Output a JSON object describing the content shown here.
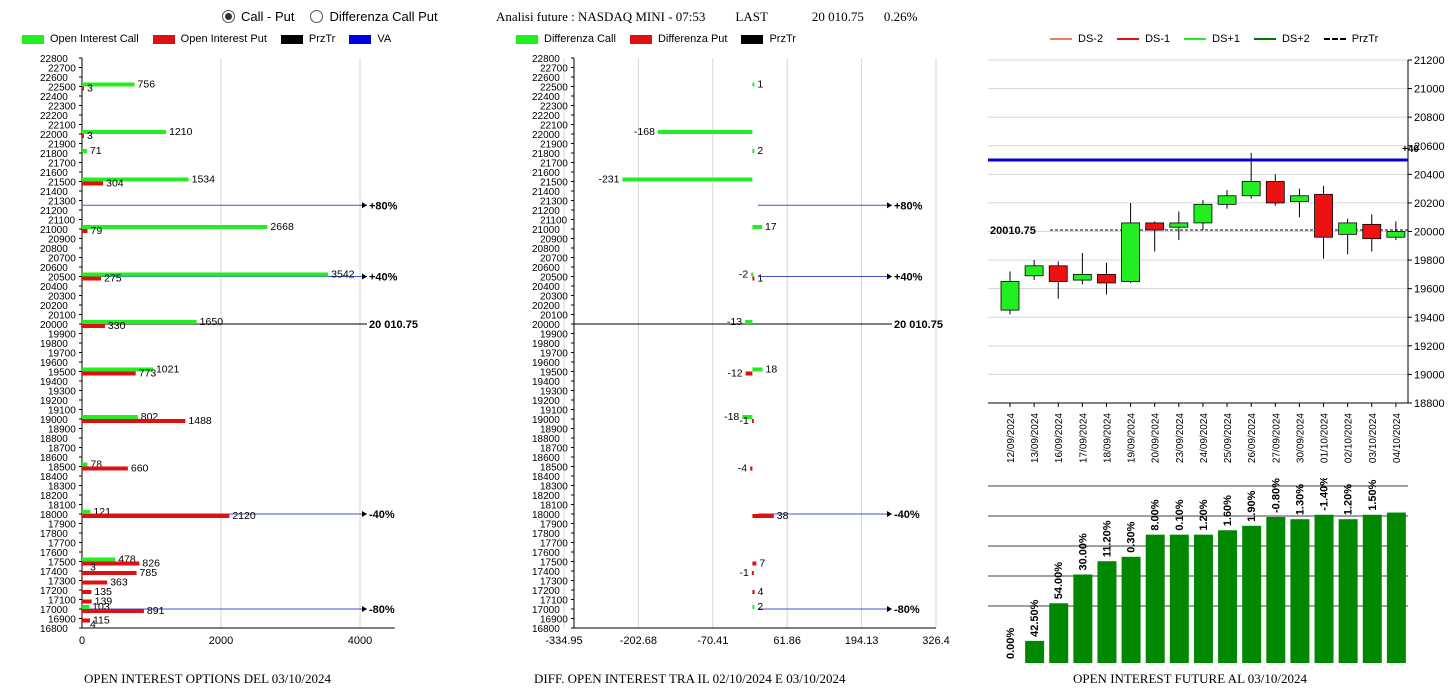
{
  "radio": {
    "options": [
      {
        "label": "Call - Put",
        "checked": true
      },
      {
        "label": "Differenza Call Put",
        "checked": false
      }
    ]
  },
  "header": {
    "title": "Analisi future : NASDAQ MINI - 07:53",
    "last_label": "LAST",
    "last_value": "20 010.75",
    "change": "0.26%"
  },
  "legends": {
    "left": [
      {
        "label": "Open Interest Call",
        "color": "#22ee22"
      },
      {
        "label": "Open Interest Put",
        "color": "#dd1111"
      },
      {
        "label": "PrzTr",
        "color": "#000000"
      },
      {
        "label": "VA",
        "color": "#0000dd"
      }
    ],
    "middle": [
      {
        "label": "Differenza Call",
        "color": "#22ee22"
      },
      {
        "label": "Differenza Put",
        "color": "#dd1111"
      },
      {
        "label": "PrzTr",
        "color": "#000000"
      }
    ],
    "right": [
      {
        "label": "DS-2",
        "color": "#f08060",
        "dash": false
      },
      {
        "label": "DS-1",
        "color": "#dd1111",
        "dash": false
      },
      {
        "label": "DS+1",
        "color": "#22ee22",
        "dash": false
      },
      {
        "label": "DS+2",
        "color": "#007700",
        "dash": false
      },
      {
        "label": "PrzTr",
        "color": "#000000",
        "dash": true
      }
    ]
  },
  "captions": {
    "left": "OPEN INTEREST OPTIONS DEL 03/10/2024",
    "middle": "DIFF. OPEN INTEREST TRA IL 02/10/2024 E 03/10/2024",
    "right": "OPEN INTEREST FUTURE AL 03/10/2024"
  },
  "chart_data": [
    {
      "type": "bar",
      "orientation": "horizontal",
      "ylim": [
        16800,
        22800
      ],
      "ytick_step": 100,
      "y_ticks": [
        "16800",
        "16900",
        "17000",
        "17100",
        "17200",
        "17300",
        "17400",
        "17500",
        "17600",
        "17700",
        "17800",
        "17900",
        "18000",
        "18100",
        "18200",
        "18300",
        "18400",
        "18500",
        "18600",
        "18700",
        "18800",
        "18900",
        "19000",
        "19100",
        "19200",
        "19300",
        "19400",
        "19500",
        "19600",
        "19700",
        "19800",
        "19900",
        "20000",
        "20100",
        "20200",
        "20300",
        "20400",
        "20500",
        "20600",
        "20700",
        "20800",
        "20900",
        "21000",
        "21100",
        "21200",
        "21300",
        "21400",
        "21500",
        "21600",
        "21700",
        "21800",
        "21900",
        "22000",
        "22100",
        "22200",
        "22300",
        "22400",
        "22500",
        "22600",
        "22700",
        "22800"
      ],
      "xlim": [
        0,
        4500
      ],
      "x_ticks": [
        "0",
        "2000",
        "4000"
      ],
      "x_tick_values": [
        0,
        2000,
        4000
      ],
      "series": [
        {
          "name": "Open Interest Call",
          "color": "#22ee22",
          "values": [
            {
              "strike": 22500,
              "value": 756
            },
            {
              "strike": 22000,
              "value": 1210
            },
            {
              "strike": 21800,
              "value": 71
            },
            {
              "strike": 21500,
              "value": 1534
            },
            {
              "strike": 21000,
              "value": 2668
            },
            {
              "strike": 20500,
              "value": 3542
            },
            {
              "strike": 20000,
              "value": 1650
            },
            {
              "strike": 19500,
              "value": 1021
            },
            {
              "strike": 19000,
              "value": 802
            },
            {
              "strike": 18500,
              "value": 78
            },
            {
              "strike": 18000,
              "value": 121
            },
            {
              "strike": 17500,
              "value": 478
            },
            {
              "strike": 17000,
              "value": 103
            }
          ]
        },
        {
          "name": "Open Interest Put",
          "color": "#dd1111",
          "values": [
            {
              "strike": 22500,
              "value": 3
            },
            {
              "strike": 22000,
              "value": 3
            },
            {
              "strike": 21500,
              "value": 304
            },
            {
              "strike": 21000,
              "value": 79
            },
            {
              "strike": 20500,
              "value": 275
            },
            {
              "strike": 20000,
              "value": 330
            },
            {
              "strike": 19500,
              "value": 773
            },
            {
              "strike": 19000,
              "value": 1488
            },
            {
              "strike": 18500,
              "value": 660
            },
            {
              "strike": 18000,
              "value": 2120
            },
            {
              "strike": 17500,
              "value": 826
            },
            {
              "strike": 17400,
              "value": 785
            },
            {
              "strike": 17300,
              "value": 363
            },
            {
              "strike": 17200,
              "value": 135
            },
            {
              "strike": 17100,
              "value": 139
            },
            {
              "strike": 17000,
              "value": 891
            },
            {
              "strike": 16900,
              "value": 115
            }
          ]
        }
      ],
      "extra_labels": [
        {
          "strike": 17450,
          "text": "3"
        },
        {
          "strike": 16850,
          "text": "4"
        }
      ],
      "levels": [
        {
          "strike": 21250,
          "label": "+80%",
          "color": "#4455cc"
        },
        {
          "strike": 20500,
          "label": "+40%",
          "color": "#4455cc"
        },
        {
          "strike": 20000,
          "label": "20 010.75",
          "color": "#000000"
        },
        {
          "strike": 18000,
          "label": "-40%",
          "color": "#4455cc"
        },
        {
          "strike": 17000,
          "label": "-80%",
          "color": "#4455cc"
        }
      ]
    },
    {
      "type": "bar",
      "orientation": "horizontal",
      "ylim": [
        16800,
        22800
      ],
      "ytick_step": 100,
      "y_ticks": [
        "16800",
        "16900",
        "17000",
        "17100",
        "17200",
        "17300",
        "17400",
        "17500",
        "17600",
        "17700",
        "17800",
        "17900",
        "18000",
        "18100",
        "18200",
        "18300",
        "18400",
        "18500",
        "18600",
        "18700",
        "18800",
        "18900",
        "19000",
        "19100",
        "19200",
        "19300",
        "19400",
        "19500",
        "19600",
        "19700",
        "19800",
        "19900",
        "20000",
        "20100",
        "20200",
        "20300",
        "20400",
        "20500",
        "20600",
        "20700",
        "20800",
        "20900",
        "21000",
        "21100",
        "21200",
        "21300",
        "21400",
        "21500",
        "21600",
        "21700",
        "21800",
        "21900",
        "22000",
        "22100",
        "22200",
        "22300",
        "22400",
        "22500",
        "22600",
        "22700",
        "22800"
      ],
      "xlim": [
        -334.95,
        326.4
      ],
      "x_ticks": [
        "-334.95",
        "-202.68",
        "-70.41",
        "61.86",
        "194.13",
        "326.4"
      ],
      "x_tick_values": [
        -334.95,
        -202.68,
        -70.41,
        61.86,
        194.13,
        326.4
      ],
      "series": [
        {
          "name": "Differenza Call",
          "color": "#22ee22",
          "values": [
            {
              "strike": 22500,
              "value": 1
            },
            {
              "strike": 22000,
              "value": -168
            },
            {
              "strike": 21800,
              "value": 2
            },
            {
              "strike": 21500,
              "value": -231
            },
            {
              "strike": 21000,
              "value": 17
            },
            {
              "strike": 20500,
              "value": -2
            },
            {
              "strike": 20000,
              "value": -13
            },
            {
              "strike": 19500,
              "value": 18
            },
            {
              "strike": 19000,
              "value": -18
            },
            {
              "strike": 17000,
              "value": 2
            }
          ]
        },
        {
          "name": "Differenza Put",
          "color": "#dd1111",
          "values": [
            {
              "strike": 20500,
              "value": 1
            },
            {
              "strike": 19500,
              "value": -12
            },
            {
              "strike": 19000,
              "value": -1
            },
            {
              "strike": 18500,
              "value": -4
            },
            {
              "strike": 18000,
              "value": 38
            },
            {
              "strike": 17500,
              "value": 7
            },
            {
              "strike": 17400,
              "value": -1
            },
            {
              "strike": 17200,
              "value": 4
            }
          ]
        }
      ],
      "levels": [
        {
          "strike": 21250,
          "label": "+80%",
          "color": "#4455cc"
        },
        {
          "strike": 20500,
          "label": "+40%",
          "color": "#4455cc"
        },
        {
          "strike": 20000,
          "label": "20 010.75",
          "color": "#000000"
        },
        {
          "strike": 18000,
          "label": "-40%",
          "color": "#4455cc"
        },
        {
          "strike": 17000,
          "label": "-80%",
          "color": "#4455cc"
        }
      ]
    },
    {
      "type": "candlestick",
      "ylim": [
        18800,
        21200
      ],
      "y_ticks": [
        "18800",
        "19000",
        "19200",
        "19400",
        "19600",
        "19800",
        "20000",
        "20200",
        "20400",
        "20600",
        "20800",
        "21000",
        "21200"
      ],
      "categories": [
        "12/09/2024",
        "13/09/2024",
        "16/09/2024",
        "17/09/2024",
        "18/09/2024",
        "19/09/2024",
        "20/09/2024",
        "23/09/2024",
        "24/09/2024",
        "25/09/2024",
        "26/09/2024",
        "27/09/2024",
        "30/09/2024",
        "01/10/2024",
        "02/10/2024",
        "03/10/2024",
        "04/10/2024"
      ],
      "candles": [
        {
          "open": 19450,
          "close": 19650,
          "high": 19720,
          "low": 19420
        },
        {
          "open": 19690,
          "close": 19760,
          "high": 19800,
          "low": 19660
        },
        {
          "open": 19760,
          "close": 19650,
          "high": 19790,
          "low": 19530
        },
        {
          "open": 19660,
          "close": 19700,
          "high": 19850,
          "low": 19630
        },
        {
          "open": 19700,
          "close": 19640,
          "high": 19780,
          "low": 19560
        },
        {
          "open": 19650,
          "close": 20060,
          "high": 20200,
          "low": 19640
        },
        {
          "open": 20060,
          "close": 20010,
          "high": 20070,
          "low": 19860
        },
        {
          "open": 20030,
          "close": 20060,
          "high": 20140,
          "low": 19940
        },
        {
          "open": 20060,
          "close": 20190,
          "high": 20220,
          "low": 20010
        },
        {
          "open": 20190,
          "close": 20250,
          "high": 20290,
          "low": 20160
        },
        {
          "open": 20250,
          "close": 20350,
          "high": 20550,
          "low": 20230
        },
        {
          "open": 20350,
          "close": 20200,
          "high": 20400,
          "low": 20180
        },
        {
          "open": 20210,
          "close": 20250,
          "high": 20300,
          "low": 20100
        },
        {
          "open": 20260,
          "close": 19960,
          "high": 20320,
          "low": 19810
        },
        {
          "open": 19980,
          "close": 20060,
          "high": 20090,
          "low": 19840
        },
        {
          "open": 20050,
          "close": 19950,
          "high": 20120,
          "low": 19860
        },
        {
          "open": 19960,
          "close": 20000,
          "high": 20070,
          "low": 19940
        }
      ],
      "levels": [
        {
          "value": 20500,
          "label": "+40",
          "color": "#0000dd"
        },
        {
          "value": 20010.75,
          "label": "20010.75",
          "color": "#000000",
          "dash": true
        }
      ]
    },
    {
      "type": "bar",
      "categories": [
        "12/09/2024",
        "13/09/2024",
        "16/09/2024",
        "17/09/2024",
        "18/09/2024",
        "19/09/2024",
        "20/09/2024",
        "23/09/2024",
        "24/09/2024",
        "25/09/2024",
        "26/09/2024",
        "27/09/2024",
        "30/09/2024",
        "01/10/2024",
        "02/10/2024",
        "03/10/2024",
        "04/10/2024"
      ],
      "values": [
        0,
        10,
        27,
        40,
        46,
        48,
        58,
        58,
        58,
        60,
        62,
        66,
        65,
        67,
        65,
        67,
        68
      ],
      "value_labels": [
        "0.00%",
        "42.50%",
        "54.00%",
        "30.00%",
        "11.20%",
        "0.30%",
        "8.00%",
        "0.10%",
        "1.20%",
        "1.60%",
        "1.90%",
        "-0.80%",
        "1.30%",
        "-1.40%",
        "1.20%",
        "1.50%",
        ""
      ],
      "ylim": [
        0,
        80
      ],
      "color": "#008800"
    }
  ]
}
